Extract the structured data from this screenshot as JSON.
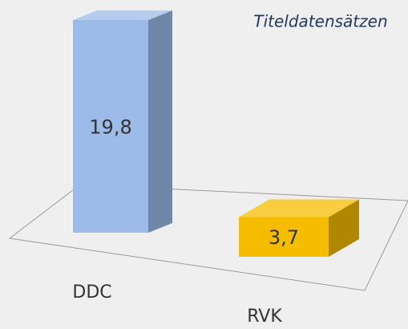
{
  "chart_data": {
    "type": "bar3d",
    "title": "Titeldatensätzen",
    "categories": [
      "DDC",
      "RVK"
    ],
    "values": [
      19.8,
      3.7
    ],
    "value_labels": [
      "19,8",
      "3,7"
    ],
    "colors": [
      "#9dbbe8",
      "#f5bc00"
    ]
  }
}
